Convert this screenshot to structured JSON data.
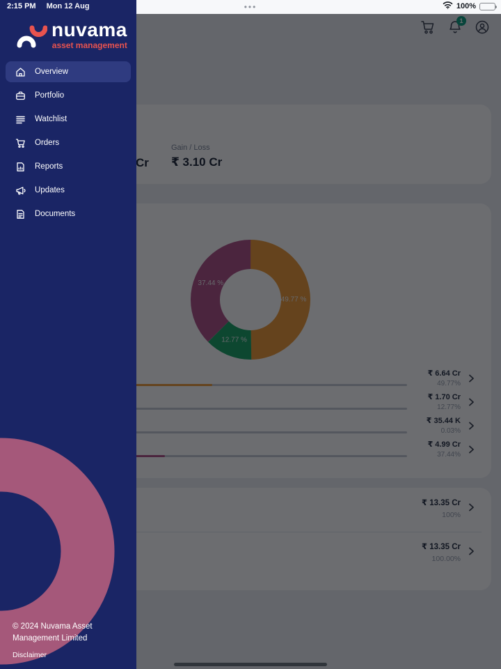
{
  "status_bar": {
    "time": "2:15 PM",
    "date": "Mon 12 Aug",
    "battery": "100%",
    "multitask_dots": "•••"
  },
  "sidebar": {
    "brand": {
      "name": "nuvama",
      "tagline": "asset management"
    },
    "items": [
      {
        "label": "Overview",
        "icon": "home-icon",
        "active": true
      },
      {
        "label": "Portfolio",
        "icon": "briefcase-icon",
        "active": false
      },
      {
        "label": "Watchlist",
        "icon": "list-icon",
        "active": false
      },
      {
        "label": "Orders",
        "icon": "cart-icon",
        "active": false
      },
      {
        "label": "Reports",
        "icon": "report-icon",
        "active": false
      },
      {
        "label": "Updates",
        "icon": "megaphone-icon",
        "active": false
      },
      {
        "label": "Documents",
        "icon": "document-icon",
        "active": false
      }
    ],
    "footer": {
      "copyright": "© 2024 Nuvama Asset Management Limited",
      "disclaimer": "Disclaimer"
    },
    "colors": {
      "background": "#1A2565",
      "active_item": "#2F3B80",
      "ring_decor": "#A5587A",
      "tagline": "#E8534F"
    }
  },
  "header": {
    "notification_count": "1",
    "badge_color": "#0FA080"
  },
  "metrics_card": {
    "partial_left_value": "Cr",
    "gain_loss_label": "Gain / Loss",
    "gain_loss_value": "₹ 3.10 Cr"
  },
  "chart_data": {
    "type": "pie",
    "donut": true,
    "title": "",
    "legend_position": "none",
    "slices": [
      {
        "label": "49.77 %",
        "value": 49.77,
        "color": "#EE9B39"
      },
      {
        "label": "12.77 %",
        "value": 12.77,
        "color": "#1DA468"
      },
      {
        "label": "0.03 %",
        "value": 0.03,
        "color": "#C9CED6"
      },
      {
        "label": "37.44 %",
        "value": 37.44,
        "color": "#B05589"
      }
    ]
  },
  "allocation": {
    "rows": [
      {
        "value": "₹ 6.64 Cr",
        "percent": "49.77%",
        "bar": 49.77,
        "color": "#EE9B39"
      },
      {
        "value": "₹ 1.70 Cr",
        "percent": "12.77%",
        "bar": 12.77,
        "color": "#1DA468"
      },
      {
        "value": "₹ 35.44 K",
        "percent": "0.03%",
        "bar": 0.03,
        "color": "#C9CED6"
      },
      {
        "value": "₹ 4.99 Cr",
        "percent": "37.44%",
        "bar": 37.44,
        "color": "#B05589"
      }
    ]
  },
  "summary": {
    "rows": [
      {
        "value": "₹ 13.35 Cr",
        "percent": "100%"
      },
      {
        "value": "₹ 13.35 Cr",
        "percent": "100.00%"
      }
    ]
  }
}
